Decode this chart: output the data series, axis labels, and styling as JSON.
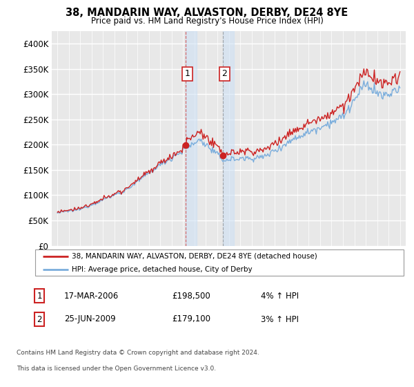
{
  "title": "38, MANDARIN WAY, ALVASTON, DERBY, DE24 8YE",
  "subtitle": "Price paid vs. HM Land Registry's House Price Index (HPI)",
  "hpi_color": "#7aaddc",
  "price_color": "#cc2222",
  "shade_color": "#cce0f5",
  "sale1_year": 2006.21,
  "sale1_price": 198500,
  "sale2_year": 2009.49,
  "sale2_price": 179100,
  "legend_line1": "38, MANDARIN WAY, ALVASTON, DERBY, DE24 8YE (detached house)",
  "legend_line2": "HPI: Average price, detached house, City of Derby",
  "sale1_date_str": "17-MAR-2006",
  "sale1_hpi_str": "4% ↑ HPI",
  "sale2_date_str": "25-JUN-2009",
  "sale2_hpi_str": "3% ↑ HPI",
  "footnote_line1": "Contains HM Land Registry data © Crown copyright and database right 2024.",
  "footnote_line2": "This data is licensed under the Open Government Licence v3.0.",
  "ytick_values": [
    0,
    50000,
    100000,
    150000,
    200000,
    250000,
    300000,
    350000,
    400000
  ],
  "ytick_labels": [
    "£0",
    "£50K",
    "£100K",
    "£150K",
    "£200K",
    "£250K",
    "£300K",
    "£350K",
    "£400K"
  ],
  "xmin": 1994.5,
  "xmax": 2025.5,
  "ymin": 0,
  "ymax": 425000,
  "plot_bg": "#e8e8e8",
  "shade_alpha": 0.55
}
